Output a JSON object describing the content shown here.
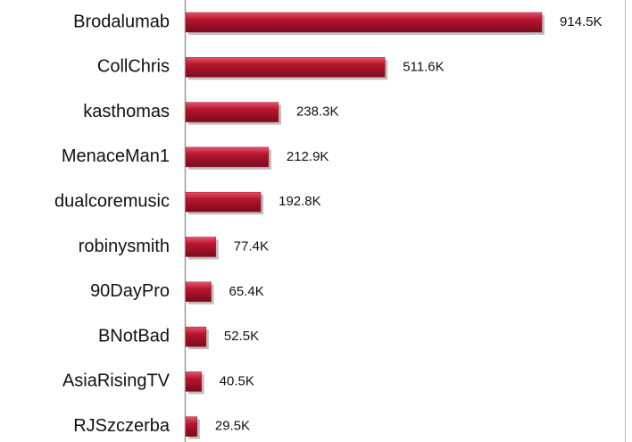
{
  "chart_data": {
    "type": "bar",
    "orientation": "horizontal",
    "categories": [
      "Brodalumab",
      "CollChris",
      "kasthomas",
      "MenaceMan1",
      "dualcoremusic",
      "robinysmith",
      "90DayPro",
      "BNotBad",
      "AsiaRisingTV",
      "RJSzczerba"
    ],
    "values": [
      914500,
      511600,
      238300,
      212900,
      192800,
      77400,
      65400,
      52500,
      40500,
      29500
    ],
    "value_labels": [
      "914.5K",
      "511.6K",
      "238.3K",
      "212.9K",
      "192.8K",
      "77.4K",
      "65.4K",
      "52.5K",
      "40.5K",
      "29.5K"
    ],
    "color": "#b0152f"
  }
}
